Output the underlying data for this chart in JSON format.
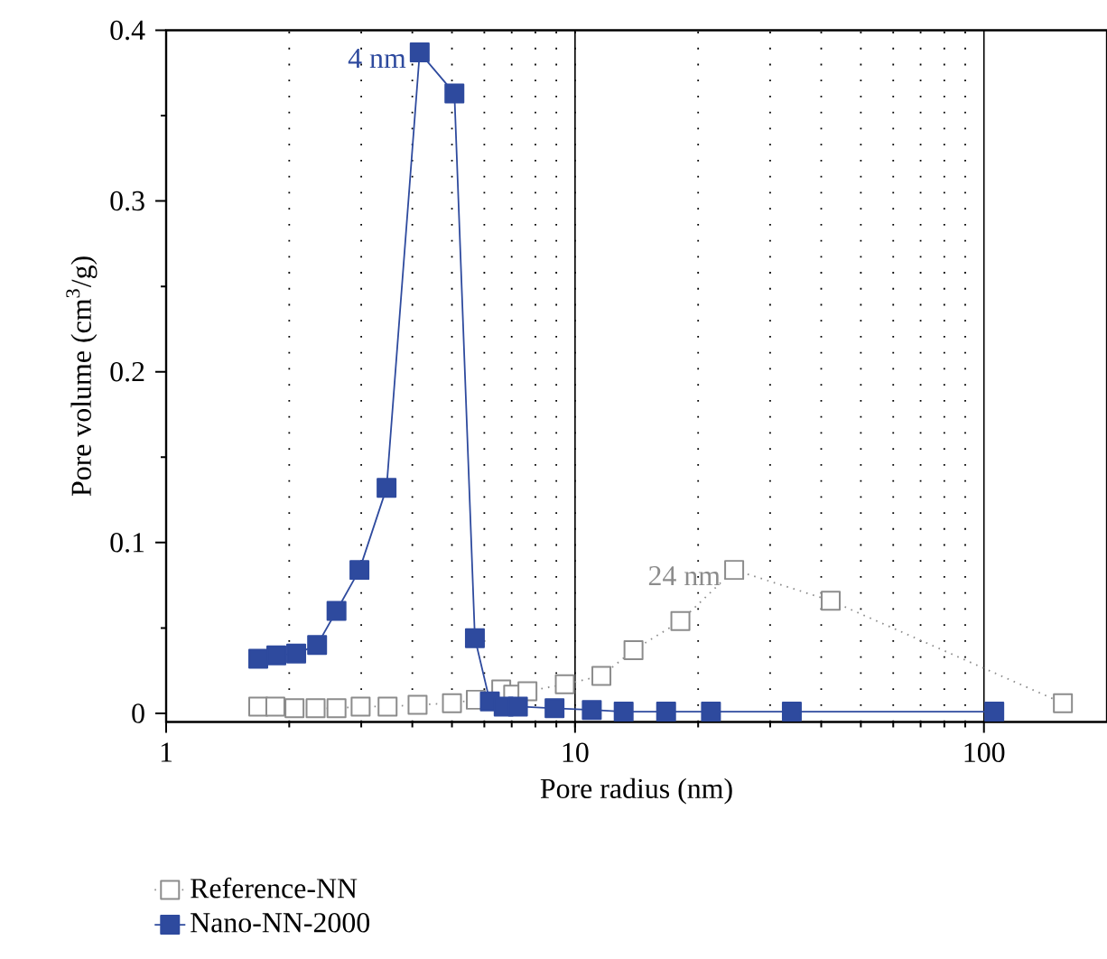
{
  "chart_data": {
    "type": "line",
    "xlabel": "Pore radius (nm)",
    "ylabel": "Pore volume (cm$^{3}$/g)",
    "log": "x",
    "xlim": [
      1,
      200
    ],
    "ylim": [
      -0.005,
      0.4
    ],
    "xticks": [
      1,
      10,
      100
    ],
    "yticks": [
      0,
      0.1,
      0.2,
      0.3,
      0.4
    ],
    "grid": "x",
    "legend": "bottom",
    "marker": "square",
    "series": [
      {
        "name": "Reference-NN",
        "color": "#8c8c8c",
        "line_style": "dotted",
        "x": [
          1.68,
          1.85,
          2.06,
          2.32,
          2.61,
          2.99,
          3.48,
          4.12,
          5.0,
          5.72,
          6.6,
          7.06,
          7.65,
          9.44,
          11.6,
          13.9,
          18.1,
          24.5,
          42.2,
          156
        ],
        "values": [
          0.004,
          0.004,
          0.003,
          0.003,
          0.003,
          0.004,
          0.004,
          0.005,
          0.006,
          0.008,
          0.014,
          0.011,
          0.013,
          0.017,
          0.022,
          0.037,
          0.054,
          0.084,
          0.066,
          0.006
        ]
      },
      {
        "name": "Nano-NN-2000",
        "color": "#2e4a9e",
        "line_style": "solid",
        "x": [
          1.68,
          1.86,
          2.08,
          2.34,
          2.61,
          2.97,
          3.46,
          4.17,
          5.07,
          5.69,
          6.19,
          6.69,
          7.25,
          8.91,
          10.99,
          13.15,
          16.7,
          21.5,
          33.9,
          106
        ],
        "values": [
          0.032,
          0.034,
          0.035,
          0.04,
          0.06,
          0.084,
          0.132,
          0.387,
          0.363,
          0.044,
          0.007,
          0.004,
          0.004,
          0.003,
          0.002,
          0.001,
          0.001,
          0.001,
          0.001,
          0.001
        ]
      }
    ],
    "annotations": [
      {
        "text": "4 nm",
        "x": 4.17,
        "y": 0.387
      },
      {
        "text": "24 nm",
        "x": 24.5,
        "y": 0.084
      }
    ]
  }
}
